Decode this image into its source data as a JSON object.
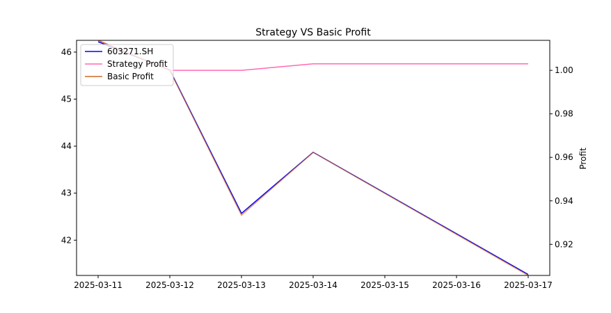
{
  "chart_data": {
    "type": "line",
    "title": "Strategy VS Basic Profit",
    "x": [
      "2025-03-11",
      "2025-03-12",
      "2025-03-13",
      "2025-03-14",
      "2025-03-15",
      "2025-03-16",
      "2025-03-17"
    ],
    "y_left": {
      "label": "",
      "ylim": [
        41.25,
        46.25
      ],
      "ticks": [
        42,
        43,
        44,
        45,
        46
      ]
    },
    "y_right": {
      "label": "Profit",
      "ylim": [
        0.9057,
        1.0138
      ],
      "ticks": [
        0.92,
        0.94,
        0.96,
        0.98,
        1.0
      ],
      "tick_labels": [
        "0.92",
        "0.94",
        "0.96",
        "0.98",
        "1.00"
      ]
    },
    "grid": false,
    "legend_position": "top-left",
    "series": [
      {
        "name": "603271.SH",
        "axis": "left",
        "color": "#0000ff",
        "x": [
          "2025-03-11",
          "2025-03-12",
          "2025-03-13",
          "2025-03-14",
          "2025-03-17"
        ],
        "values": [
          46.22,
          45.62,
          42.57,
          43.87,
          41.27
        ]
      },
      {
        "name": "Strategy Profit",
        "axis": "right",
        "color": "#ff69b4",
        "x": [
          "2025-03-11",
          "2025-03-12",
          "2025-03-13",
          "2025-03-14",
          "2025-03-15",
          "2025-03-16",
          "2025-03-17"
        ],
        "values": [
          1.0138,
          1.0,
          1.0,
          1.003,
          1.003,
          1.003,
          1.003
        ]
      },
      {
        "name": "Basic Profit",
        "axis": "right",
        "color": "#d2691e",
        "x": [
          "2025-03-11",
          "2025-03-12",
          "2025-03-13",
          "2025-03-14",
          "2025-03-17"
        ],
        "values": [
          1.0138,
          1.0,
          0.9334,
          0.9623,
          0.9057
        ]
      }
    ]
  }
}
